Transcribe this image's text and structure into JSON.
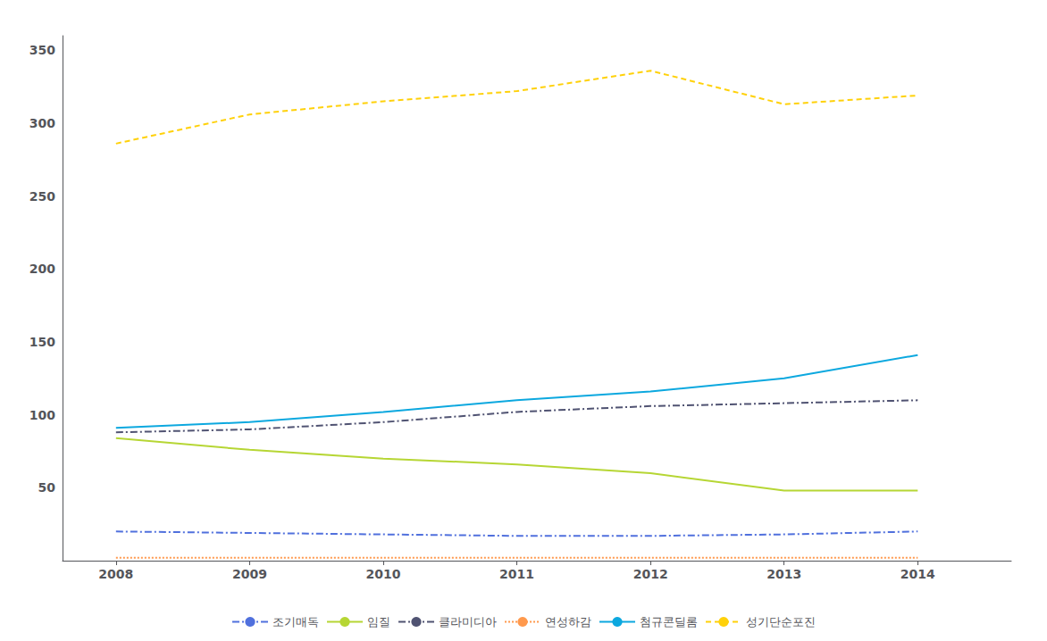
{
  "chart_data": {
    "type": "line",
    "x": [
      2008,
      2009,
      2010,
      2011,
      2012,
      2013,
      2014
    ],
    "xlim": [
      2007.6,
      2014.7
    ],
    "xticks": [
      2008,
      2009,
      2010,
      2011,
      2012,
      2013,
      2014
    ],
    "ylim": [
      0,
      360
    ],
    "yticks": [
      50,
      100,
      150,
      200,
      250,
      300,
      350
    ],
    "grid": false,
    "legend": "bottom",
    "series": [
      {
        "name": "조기매독",
        "values": [
          20,
          19,
          18,
          17,
          17,
          18,
          20
        ],
        "line_style": "dashdot"
      },
      {
        "name": "임질",
        "values": [
          84,
          76,
          70,
          66,
          60,
          48,
          48
        ],
        "line_style": "solid"
      },
      {
        "name": "클라미디아",
        "values": [
          88,
          90,
          95,
          102,
          106,
          108,
          110
        ],
        "line_style": "dashdot"
      },
      {
        "name": "연성하감",
        "values": [
          2,
          2,
          2,
          2,
          2,
          2,
          2
        ],
        "line_style": "dotted"
      },
      {
        "name": "첨규콘딜롬",
        "values": [
          91,
          95,
          102,
          110,
          116,
          125,
          141
        ],
        "line_style": "solid"
      },
      {
        "name": "성기단순포진",
        "values": [
          286,
          306,
          315,
          322,
          336,
          313,
          319
        ],
        "line_style": "dashed"
      }
    ]
  }
}
